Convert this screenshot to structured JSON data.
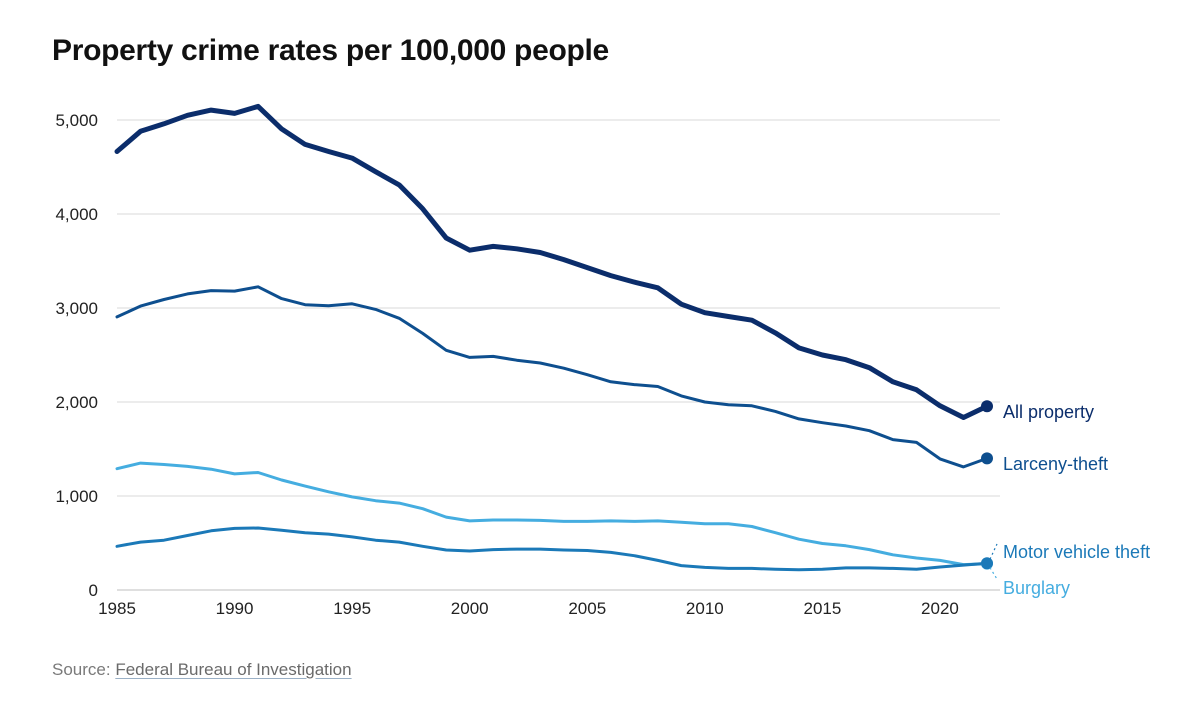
{
  "title": "Property crime rates per 100,000 people",
  "source": {
    "prefix": "Source:",
    "link_text": "Federal Bureau of Investigation"
  },
  "colors": {
    "all_property": "#0b2d6b",
    "larceny_theft": "#0e4f8f",
    "motor_vehicle_theft": "#1b79b8",
    "burglary": "#45ade0",
    "grid": "#d9d9d9",
    "axis_text": "#222222"
  },
  "chart_data": {
    "type": "line",
    "title": "Property crime rates per 100,000 people",
    "xlabel": "",
    "ylabel": "",
    "xlim": [
      1985,
      2022
    ],
    "ylim": [
      0,
      5000
    ],
    "x_ticks": [
      1985,
      1990,
      1995,
      2000,
      2005,
      2010,
      2015,
      2020
    ],
    "x_tick_labels": [
      "1985",
      "1990",
      "1995",
      "2000",
      "2005",
      "2010",
      "2015",
      "2020"
    ],
    "y_ticks": [
      0,
      1000,
      2000,
      3000,
      4000,
      5000
    ],
    "y_tick_labels": [
      "0",
      "1,000",
      "2,000",
      "3,000",
      "4,000",
      "5,000"
    ],
    "grid": true,
    "legend": "direct labels at line ends (right)",
    "x": [
      1985,
      1986,
      1987,
      1988,
      1989,
      1990,
      1991,
      1992,
      1993,
      1994,
      1995,
      1996,
      1997,
      1998,
      1999,
      2000,
      2001,
      2002,
      2003,
      2004,
      2005,
      2006,
      2007,
      2008,
      2009,
      2010,
      2011,
      2012,
      2013,
      2014,
      2015,
      2016,
      2017,
      2018,
      2019,
      2020,
      2021,
      2022
    ],
    "series": [
      {
        "key": "burglary",
        "name": "Burglary",
        "stroke": 3,
        "values": [
          1290,
          1350,
          1335,
          1315,
          1285,
          1235,
          1250,
          1170,
          1105,
          1045,
          990,
          950,
          925,
          865,
          775,
          735,
          745,
          745,
          740,
          730,
          730,
          735,
          730,
          735,
          720,
          705,
          705,
          675,
          610,
          540,
          495,
          470,
          430,
          375,
          340,
          315,
          270,
          280
        ]
      },
      {
        "key": "motor_vehicle_theft",
        "name": "Motor vehicle theft",
        "stroke": 3,
        "values": [
          465,
          510,
          530,
          580,
          630,
          655,
          660,
          635,
          610,
          595,
          565,
          530,
          510,
          465,
          425,
          415,
          430,
          435,
          435,
          425,
          420,
          400,
          365,
          315,
          260,
          240,
          230,
          230,
          220,
          215,
          220,
          235,
          235,
          230,
          220,
          245,
          265,
          285
        ]
      },
      {
        "key": "larceny_theft",
        "name": "Larceny-theft",
        "stroke": 3,
        "values": [
          2905,
          3020,
          3090,
          3150,
          3185,
          3180,
          3225,
          3100,
          3035,
          3025,
          3045,
          2985,
          2890,
          2730,
          2550,
          2475,
          2485,
          2445,
          2415,
          2360,
          2290,
          2215,
          2185,
          2165,
          2065,
          2000,
          1970,
          1960,
          1900,
          1820,
          1780,
          1745,
          1695,
          1600,
          1570,
          1395,
          1310,
          1400
        ]
      },
      {
        "key": "all_property",
        "name": "All property",
        "stroke": 5,
        "values": [
          4665,
          4880,
          4960,
          5050,
          5105,
          5070,
          5145,
          4905,
          4740,
          4665,
          4595,
          4450,
          4310,
          4055,
          3745,
          3615,
          3655,
          3630,
          3590,
          3515,
          3430,
          3345,
          3275,
          3215,
          3040,
          2950,
          2910,
          2870,
          2735,
          2575,
          2500,
          2450,
          2365,
          2215,
          2130,
          1960,
          1835,
          1955
        ]
      }
    ]
  }
}
